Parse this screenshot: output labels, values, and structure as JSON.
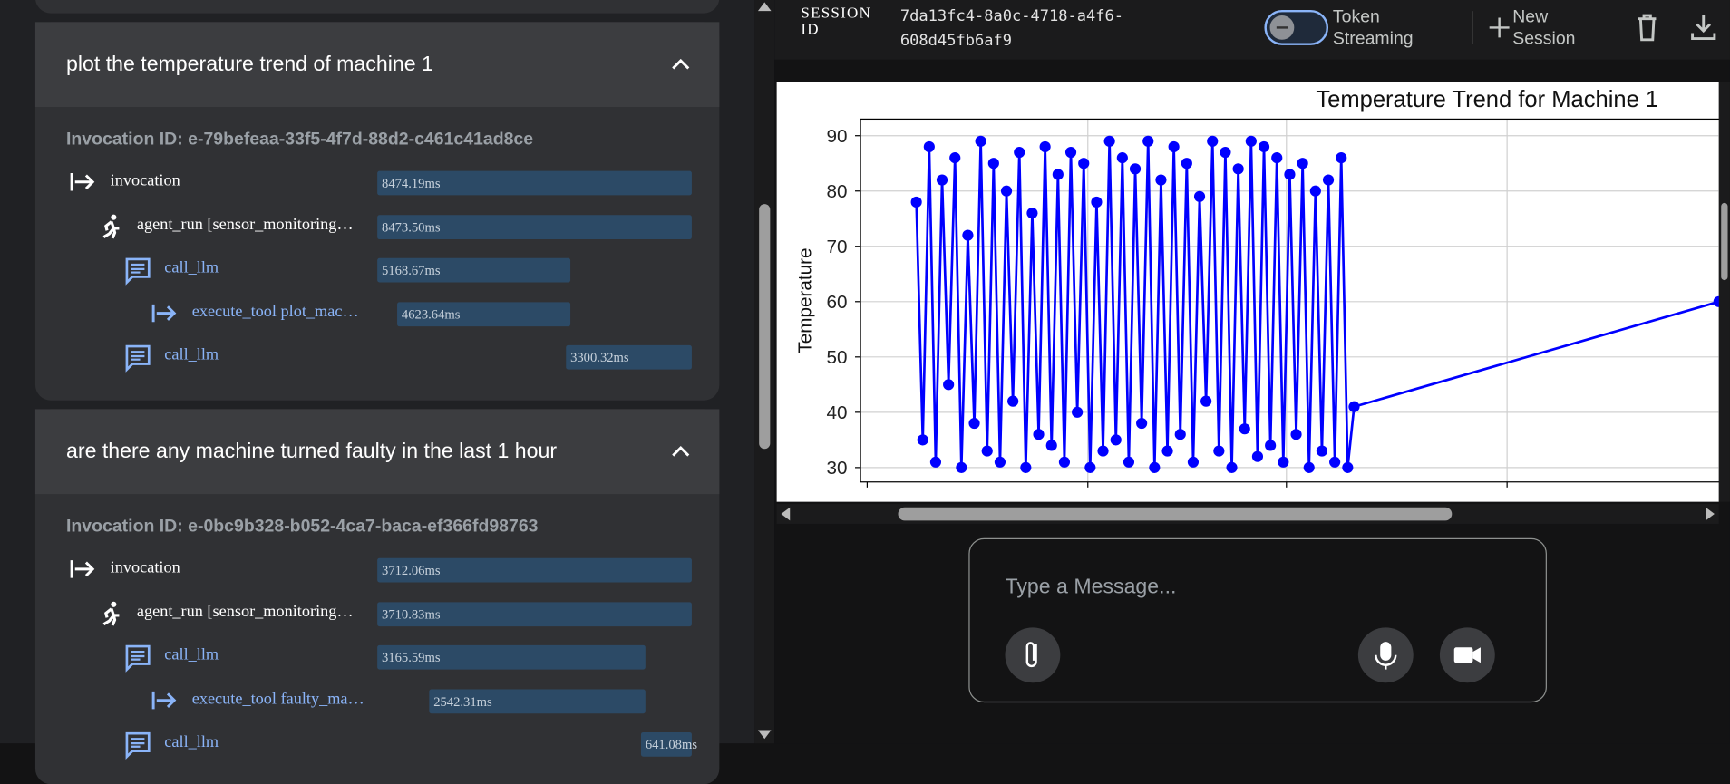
{
  "trace_panel": {
    "groups": [
      {
        "query": "plot the temperature trend of machine 1",
        "invocation_id": "Invocation ID: e-79befeaa-33f5-4f7d-88d2-c461c41ad8ce",
        "spans": [
          {
            "label": "invocation",
            "duration": "8474.19ms"
          },
          {
            "label": "agent_run [sensor_monitoring…",
            "duration": "8473.50ms"
          },
          {
            "label": "call_llm",
            "duration": "5168.67ms"
          },
          {
            "label": "execute_tool plot_mac…",
            "duration": "4623.64ms"
          },
          {
            "label": "call_llm",
            "duration": "3300.32ms"
          }
        ]
      },
      {
        "query": "are there any machine turned faulty in the last 1 hour",
        "invocation_id": "Invocation ID: e-0bc9b328-b052-4ca7-baca-ef366fd98763",
        "spans": [
          {
            "label": "invocation",
            "duration": "3712.06ms"
          },
          {
            "label": "agent_run [sensor_monitoring…",
            "duration": "3710.83ms"
          },
          {
            "label": "call_llm",
            "duration": "3165.59ms"
          },
          {
            "label": "execute_tool faulty_ma…",
            "duration": "2542.31ms"
          },
          {
            "label": "call_llm",
            "duration": "641.08ms"
          }
        ]
      }
    ]
  },
  "session": {
    "label": "SESSION ID",
    "id": "7da13fc4-8a0c-4718-a4f6-608d45fb6af9",
    "toggle_label": "Token Streaming",
    "new_session": "New Session"
  },
  "chart_data": {
    "type": "line",
    "title": "Temperature Trend for Machine 1",
    "y_label": "Temperature",
    "color": "#0000ff",
    "ylim": [
      27.4,
      93
    ],
    "yticks": [
      30,
      40,
      50,
      60,
      70,
      80,
      90
    ],
    "xlim": [
      0,
      100
    ],
    "grid": true,
    "x": [
      6.5,
      7.25,
      8,
      8.75,
      9.5,
      10.25,
      11,
      11.75,
      12.5,
      13.25,
      14,
      14.75,
      15.5,
      16.25,
      17,
      17.75,
      18.5,
      19.25,
      20,
      20.75,
      21.5,
      22.25,
      23,
      23.75,
      24.5,
      25.25,
      26,
      26.75,
      27.5,
      28.25,
      29,
      29.75,
      30.5,
      31.25,
      32,
      32.75,
      33.5,
      34.25,
      35,
      35.75,
      36.5,
      37.25,
      38,
      38.75,
      39.5,
      40.25,
      41,
      41.75,
      42.5,
      43.25,
      44,
      44.75,
      45.5,
      46.25,
      47,
      47.75,
      48.5,
      49.25,
      50,
      50.75,
      51.5,
      52.25,
      53,
      53.75,
      54.5,
      55.25,
      56,
      56.75,
      57.5,
      100
    ],
    "values": [
      78,
      35,
      88,
      31,
      82,
      45,
      86,
      30,
      72,
      38,
      89,
      33,
      85,
      31,
      80,
      42,
      87,
      30,
      76,
      36,
      88,
      34,
      83,
      31,
      87,
      40,
      85,
      30,
      78,
      33,
      89,
      35,
      86,
      31,
      84,
      38,
      89,
      30,
      82,
      33,
      88,
      36,
      85,
      31,
      79,
      42,
      89,
      33,
      87,
      30,
      84,
      37,
      89,
      32,
      88,
      34,
      86,
      31,
      83,
      36,
      85,
      30,
      80,
      33,
      82,
      31,
      86,
      30,
      41,
      60
    ]
  },
  "composer": {
    "placeholder": "Type a Message..."
  }
}
